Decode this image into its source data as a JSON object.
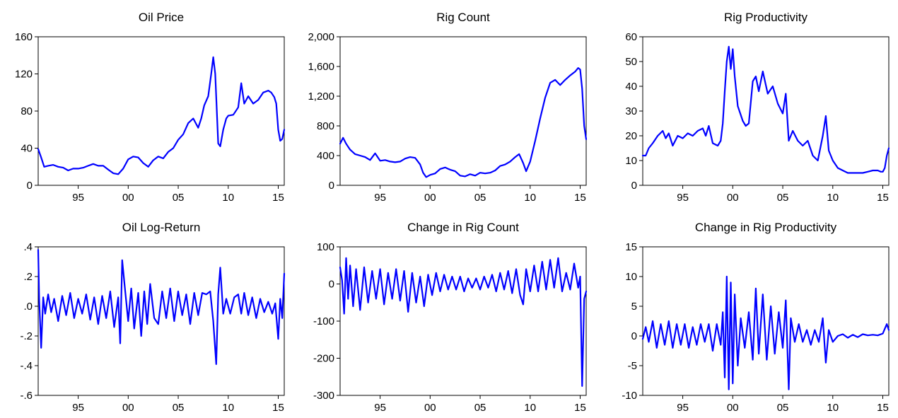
{
  "line_color": "#0000ff",
  "chart_data": [
    {
      "type": "line",
      "title": "Oil Price",
      "xlabel": "",
      "ylabel": "",
      "x_range": [
        1991.0,
        2015.6
      ],
      "x_ticks": [
        "95",
        "00",
        "05",
        "10",
        "15"
      ],
      "ylim": [
        0,
        160
      ],
      "y_ticks": [
        "0",
        "40",
        "80",
        "120",
        "160"
      ],
      "y_tick_values": [
        0,
        40,
        80,
        120,
        160
      ],
      "series": [
        {
          "x": [
            1991.0,
            1991.3,
            1991.6,
            1992.0,
            1992.5,
            1993.0,
            1993.5,
            1994.0,
            1994.5,
            1995.0,
            1995.5,
            1996.0,
            1996.5,
            1997.0,
            1997.5,
            1998.0,
            1998.5,
            1999.0,
            1999.5,
            2000.0,
            2000.5,
            2001.0,
            2001.5,
            2002.0,
            2002.5,
            2003.0,
            2003.5,
            2004.0,
            2004.5,
            2005.0,
            2005.5,
            2006.0,
            2006.5,
            2007.0,
            2007.3,
            2007.6,
            2008.0,
            2008.3,
            2008.5,
            2008.7,
            2008.9,
            2009.0,
            2009.2,
            2009.5,
            2009.8,
            2010.0,
            2010.5,
            2011.0,
            2011.3,
            2011.6,
            2012.0,
            2012.5,
            2013.0,
            2013.5,
            2014.0,
            2014.3,
            2014.6,
            2014.8,
            2015.0,
            2015.2,
            2015.4,
            2015.6
          ],
          "y": [
            39,
            30,
            20,
            21,
            22,
            20,
            19,
            16,
            18,
            18,
            19,
            21,
            23,
            21,
            21,
            17,
            13,
            12,
            18,
            28,
            31,
            30,
            24,
            20,
            27,
            31,
            29,
            36,
            40,
            49,
            55,
            67,
            72,
            62,
            72,
            86,
            96,
            120,
            138,
            120,
            70,
            45,
            42,
            60,
            72,
            75,
            76,
            84,
            110,
            88,
            96,
            88,
            92,
            100,
            102,
            100,
            95,
            88,
            60,
            48,
            50,
            60
          ]
        }
      ]
    },
    {
      "type": "line",
      "title": "Rig Count",
      "xlabel": "",
      "ylabel": "",
      "x_range": [
        1991.0,
        2015.6
      ],
      "x_ticks": [
        "95",
        "00",
        "05",
        "10",
        "15"
      ],
      "ylim": [
        0,
        2000
      ],
      "y_ticks": [
        "0",
        "400",
        "800",
        "1,200",
        "1,600",
        "2,000"
      ],
      "y_tick_values": [
        0,
        400,
        800,
        1200,
        1600,
        2000
      ],
      "series": [
        {
          "x": [
            1991.0,
            1991.3,
            1991.6,
            1992.0,
            1992.5,
            1993.0,
            1993.5,
            1994.0,
            1994.5,
            1995.0,
            1995.5,
            1996.0,
            1996.5,
            1997.0,
            1997.5,
            1998.0,
            1998.5,
            1999.0,
            1999.3,
            1999.6,
            2000.0,
            2000.5,
            2001.0,
            2001.5,
            2002.0,
            2002.5,
            2003.0,
            2003.5,
            2004.0,
            2004.5,
            2005.0,
            2005.5,
            2006.0,
            2006.5,
            2007.0,
            2007.5,
            2008.0,
            2008.5,
            2008.9,
            2009.3,
            2009.6,
            2010.0,
            2010.5,
            2011.0,
            2011.5,
            2012.0,
            2012.5,
            2013.0,
            2013.5,
            2014.0,
            2014.5,
            2014.8,
            2015.0,
            2015.2,
            2015.4,
            2015.6
          ],
          "y": [
            560,
            640,
            560,
            480,
            420,
            400,
            380,
            340,
            430,
            330,
            340,
            320,
            310,
            320,
            360,
            380,
            370,
            280,
            170,
            110,
            140,
            160,
            220,
            240,
            210,
            190,
            130,
            120,
            150,
            130,
            170,
            160,
            170,
            200,
            260,
            280,
            320,
            380,
            420,
            300,
            190,
            320,
            600,
            900,
            1180,
            1380,
            1420,
            1350,
            1420,
            1480,
            1530,
            1580,
            1560,
            1300,
            800,
            620
          ]
        }
      ]
    },
    {
      "type": "line",
      "title": "Rig Productivity",
      "xlabel": "",
      "ylabel": "",
      "x_range": [
        1991.0,
        2015.6
      ],
      "x_ticks": [
        "95",
        "00",
        "05",
        "10",
        "15"
      ],
      "ylim": [
        0,
        60
      ],
      "y_ticks": [
        "0",
        "10",
        "20",
        "30",
        "40",
        "50",
        "60"
      ],
      "y_tick_values": [
        0,
        10,
        20,
        30,
        40,
        50,
        60
      ],
      "series": [
        {
          "x": [
            1991.0,
            1991.3,
            1991.6,
            1992.0,
            1992.5,
            1993.0,
            1993.3,
            1993.6,
            1994.0,
            1994.5,
            1995.0,
            1995.5,
            1996.0,
            1996.5,
            1997.0,
            1997.3,
            1997.6,
            1998.0,
            1998.5,
            1998.8,
            1999.0,
            1999.2,
            1999.4,
            1999.6,
            1999.8,
            2000.0,
            2000.2,
            2000.5,
            2001.0,
            2001.3,
            2001.6,
            2002.0,
            2002.3,
            2002.6,
            2003.0,
            2003.5,
            2004.0,
            2004.5,
            2005.0,
            2005.3,
            2005.6,
            2006.0,
            2006.5,
            2007.0,
            2007.5,
            2008.0,
            2008.5,
            2009.0,
            2009.3,
            2009.6,
            2010.0,
            2010.5,
            2011.0,
            2011.5,
            2012.0,
            2012.5,
            2013.0,
            2013.5,
            2014.0,
            2014.5,
            2014.8,
            2015.0,
            2015.2,
            2015.4,
            2015.6
          ],
          "y": [
            12,
            12,
            15,
            17,
            20,
            22,
            19,
            21,
            16,
            20,
            19,
            21,
            20,
            22,
            23,
            20,
            24,
            17,
            16,
            18,
            25,
            38,
            50,
            56,
            47,
            55,
            44,
            32,
            26,
            24,
            25,
            42,
            44,
            38,
            46,
            37,
            40,
            33,
            29,
            37,
            18,
            22,
            18,
            16,
            18,
            12,
            10,
            20,
            28,
            14,
            10,
            7,
            6,
            5,
            5,
            5,
            5,
            5.5,
            6,
            6,
            5.5,
            5.5,
            7,
            12,
            15
          ]
        }
      ]
    },
    {
      "type": "line",
      "title": "Oil Log-Return",
      "xlabel": "",
      "ylabel": "",
      "x_range": [
        1991.0,
        2015.6
      ],
      "x_ticks": [
        "95",
        "00",
        "05",
        "10",
        "15"
      ],
      "ylim": [
        -0.6,
        0.4
      ],
      "y_ticks": [
        "-.6",
        "-.4",
        "-.2",
        ".0",
        ".2",
        ".4"
      ],
      "y_tick_values": [
        -0.6,
        -0.4,
        -0.2,
        0.0,
        0.2,
        0.4
      ],
      "series": [
        {
          "x": [
            1991.0,
            1991.1,
            1991.3,
            1991.5,
            1991.7,
            1992.0,
            1992.3,
            1992.6,
            1993.0,
            1993.4,
            1993.8,
            1994.2,
            1994.6,
            1995.0,
            1995.4,
            1995.8,
            1996.2,
            1996.6,
            1997.0,
            1997.4,
            1997.8,
            1998.2,
            1998.6,
            1999.0,
            1999.2,
            1999.4,
            1999.7,
            2000.0,
            2000.3,
            2000.6,
            2001.0,
            2001.3,
            2001.6,
            2001.9,
            2002.2,
            2002.6,
            2003.0,
            2003.4,
            2003.8,
            2004.2,
            2004.6,
            2005.0,
            2005.4,
            2005.8,
            2006.2,
            2006.6,
            2007.0,
            2007.4,
            2007.8,
            2008.2,
            2008.5,
            2008.8,
            2009.0,
            2009.2,
            2009.5,
            2009.8,
            2010.2,
            2010.6,
            2011.0,
            2011.3,
            2011.6,
            2012.0,
            2012.4,
            2012.8,
            2013.2,
            2013.6,
            2014.0,
            2014.4,
            2014.7,
            2015.0,
            2015.2,
            2015.4,
            2015.6
          ],
          "y": [
            0.38,
            0.05,
            -0.28,
            0.06,
            -0.05,
            0.08,
            -0.04,
            0.05,
            -0.1,
            0.07,
            -0.06,
            0.09,
            -0.08,
            0.05,
            -0.05,
            0.08,
            -0.09,
            0.06,
            -0.12,
            0.07,
            -0.08,
            0.1,
            -0.14,
            0.06,
            -0.25,
            0.31,
            0.1,
            -0.1,
            0.12,
            -0.15,
            0.09,
            -0.2,
            0.1,
            -0.12,
            0.15,
            -0.08,
            -0.12,
            0.1,
            -0.08,
            0.12,
            -0.1,
            0.1,
            -0.06,
            0.08,
            -0.12,
            0.09,
            -0.06,
            0.09,
            0.08,
            0.1,
            -0.1,
            -0.39,
            0.08,
            0.26,
            -0.05,
            0.05,
            -0.05,
            0.06,
            0.08,
            -0.05,
            0.09,
            -0.06,
            0.06,
            -0.08,
            0.05,
            -0.04,
            0.03,
            -0.05,
            0.02,
            -0.22,
            0.05,
            -0.08,
            0.22
          ]
        }
      ]
    },
    {
      "type": "line",
      "title": "Change in Rig Count",
      "xlabel": "",
      "ylabel": "",
      "x_range": [
        1991.0,
        2015.6
      ],
      "x_ticks": [
        "95",
        "00",
        "05",
        "10",
        "15"
      ],
      "ylim": [
        -300,
        100
      ],
      "y_ticks": [
        "-300",
        "-200",
        "-100",
        "0",
        "100"
      ],
      "y_tick_values": [
        -300,
        -200,
        -100,
        0,
        100
      ],
      "series": [
        {
          "x": [
            1991.0,
            1991.2,
            1991.4,
            1991.6,
            1991.8,
            1992.0,
            1992.3,
            1992.6,
            1993.0,
            1993.4,
            1993.8,
            1994.2,
            1994.6,
            1995.0,
            1995.4,
            1995.8,
            1996.2,
            1996.6,
            1997.0,
            1997.4,
            1997.8,
            1998.2,
            1998.6,
            1999.0,
            1999.4,
            1999.8,
            2000.2,
            2000.6,
            2001.0,
            2001.4,
            2001.8,
            2002.2,
            2002.6,
            2003.0,
            2003.4,
            2003.8,
            2004.2,
            2004.6,
            2005.0,
            2005.4,
            2005.8,
            2006.2,
            2006.6,
            2007.0,
            2007.4,
            2007.8,
            2008.2,
            2008.6,
            2009.0,
            2009.3,
            2009.6,
            2010.0,
            2010.4,
            2010.8,
            2011.2,
            2011.6,
            2012.0,
            2012.4,
            2012.8,
            2013.2,
            2013.6,
            2014.0,
            2014.4,
            2014.8,
            2015.0,
            2015.2,
            2015.4,
            2015.6
          ],
          "y": [
            45,
            10,
            -80,
            70,
            -40,
            50,
            -60,
            40,
            -70,
            45,
            -50,
            35,
            -40,
            40,
            -55,
            30,
            -40,
            40,
            -45,
            35,
            -75,
            30,
            -50,
            20,
            -60,
            25,
            -30,
            30,
            -20,
            25,
            -15,
            20,
            -15,
            20,
            -20,
            15,
            -10,
            15,
            -15,
            20,
            -10,
            25,
            -20,
            30,
            -15,
            35,
            -25,
            40,
            -30,
            -55,
            40,
            -20,
            50,
            -20,
            60,
            -15,
            65,
            -10,
            70,
            -20,
            30,
            -15,
            55,
            -10,
            20,
            -275,
            -40,
            -20
          ]
        }
      ]
    },
    {
      "type": "line",
      "title": "Change in Rig Productivity",
      "xlabel": "",
      "ylabel": "",
      "x_range": [
        1991.0,
        2015.6
      ],
      "x_ticks": [
        "95",
        "00",
        "05",
        "10",
        "15"
      ],
      "ylim": [
        -10,
        15
      ],
      "y_ticks": [
        "-10",
        "-5",
        "0",
        "5",
        "10",
        "15"
      ],
      "y_tick_values": [
        -10,
        -5,
        0,
        5,
        10,
        15
      ],
      "series": [
        {
          "x": [
            1991.0,
            1991.3,
            1991.6,
            1992.0,
            1992.4,
            1992.8,
            1993.2,
            1993.6,
            1994.0,
            1994.4,
            1994.8,
            1995.2,
            1995.6,
            1996.0,
            1996.4,
            1996.8,
            1997.2,
            1997.6,
            1998.0,
            1998.4,
            1998.8,
            1999.0,
            1999.2,
            1999.4,
            1999.6,
            1999.8,
            2000.0,
            2000.2,
            2000.5,
            2000.8,
            2001.2,
            2001.6,
            2002.0,
            2002.3,
            2002.6,
            2003.0,
            2003.4,
            2003.8,
            2004.2,
            2004.6,
            2005.0,
            2005.3,
            2005.6,
            2005.8,
            2006.2,
            2006.6,
            2007.0,
            2007.4,
            2007.8,
            2008.2,
            2008.6,
            2009.0,
            2009.3,
            2009.6,
            2010.0,
            2010.5,
            2011.0,
            2011.5,
            2012.0,
            2012.5,
            2013.0,
            2013.5,
            2014.0,
            2014.5,
            2015.0,
            2015.2,
            2015.4,
            2015.6
          ],
          "y": [
            -0.5,
            1.5,
            -1,
            2.5,
            -2,
            2,
            -1.5,
            2.5,
            -2,
            2,
            -1.5,
            2,
            -2,
            1.5,
            -1.5,
            2,
            -1,
            2,
            -2.5,
            2,
            -1.5,
            4,
            -7,
            10,
            -9,
            9,
            -8,
            7,
            -5,
            3,
            -2,
            4,
            -4,
            8,
            -3,
            7,
            -4,
            5,
            -3,
            4,
            -2,
            6,
            -9,
            3,
            -1,
            2,
            -1,
            1,
            -1.5,
            1,
            -1,
            3,
            -4.5,
            1,
            -1,
            0,
            0.3,
            -0.3,
            0.2,
            -0.2,
            0.3,
            0.1,
            0.2,
            0.1,
            0.4,
            1.2,
            2,
            1
          ]
        }
      ]
    }
  ]
}
